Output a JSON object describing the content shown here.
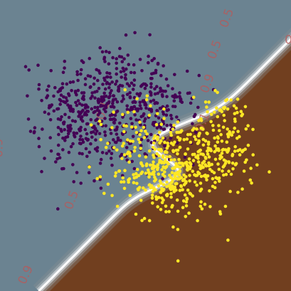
{
  "chart_data": {
    "type": "scatter",
    "title": "",
    "xlabel": "",
    "ylabel": "",
    "xlim": [
      -3.0,
      3.0
    ],
    "ylim": [
      -3.0,
      3.0
    ],
    "grid": false,
    "legend": "none",
    "background": {
      "kind": "decision-region",
      "boundary_description": "sigmoid-shaped curve from bottom-left to top-right",
      "regions": [
        {
          "class": 0,
          "color": "#6b8391"
        },
        {
          "class": 1,
          "color": "#713f1f"
        }
      ],
      "boundary_color": "#ffffff"
    },
    "contour_labels": [
      {
        "text": "0.9",
        "x": -2.95,
        "y": -0.05,
        "rotation": -90,
        "color": "#b55a5a"
      },
      {
        "text": "0.5",
        "x": -1.45,
        "y": -1.15,
        "rotation": -70,
        "color": "#b55a5a"
      },
      {
        "text": "0.1",
        "x": -0.8,
        "y": 0.7,
        "rotation": -70,
        "color": "#b55a5a"
      },
      {
        "text": "0.9",
        "x": -2.4,
        "y": -2.7,
        "rotation": -65,
        "color": "#b55a5a"
      },
      {
        "text": "0.1",
        "x": 1.25,
        "y": 0.45,
        "rotation": -70,
        "color": "#b55a5a"
      },
      {
        "text": "0.9",
        "x": 1.35,
        "y": 1.25,
        "rotation": -70,
        "color": "#b55a5a"
      },
      {
        "text": "0.5",
        "x": 1.5,
        "y": 1.95,
        "rotation": -70,
        "color": "#b55a5a"
      },
      {
        "text": "0.5",
        "x": 1.75,
        "y": 2.6,
        "rotation": -70,
        "color": "#b55a5a"
      },
      {
        "text": "0",
        "x": 2.95,
        "y": 2.1,
        "rotation": 0,
        "color": "#b55a5a"
      }
    ],
    "series": [
      {
        "class": 0,
        "color": "#440154",
        "clusters": [
          {
            "cx": -0.8,
            "cy": 1.0,
            "sx": 0.65,
            "sy": 0.55,
            "n": 300
          },
          {
            "cx": -1.35,
            "cy": 0.45,
            "sx": 0.45,
            "sy": 0.4,
            "n": 130
          },
          {
            "cx": 0.35,
            "cy": 0.55,
            "sx": 0.35,
            "sy": 0.45,
            "n": 140
          },
          {
            "cx": -1.0,
            "cy": -0.2,
            "sx": 0.5,
            "sy": 0.35,
            "n": 35
          }
        ]
      },
      {
        "class": 1,
        "color": "#fde725",
        "clusters": [
          {
            "cx": 0.95,
            "cy": -0.45,
            "sx": 0.55,
            "sy": 0.5,
            "n": 230
          },
          {
            "cx": 0.25,
            "cy": -0.55,
            "sx": 0.45,
            "sy": 0.45,
            "n": 200
          },
          {
            "cx": 1.65,
            "cy": 0.2,
            "sx": 0.35,
            "sy": 0.45,
            "n": 100
          },
          {
            "cx": -0.2,
            "cy": 0.6,
            "sx": 0.45,
            "sy": 0.35,
            "n": 30
          }
        ]
      }
    ]
  }
}
